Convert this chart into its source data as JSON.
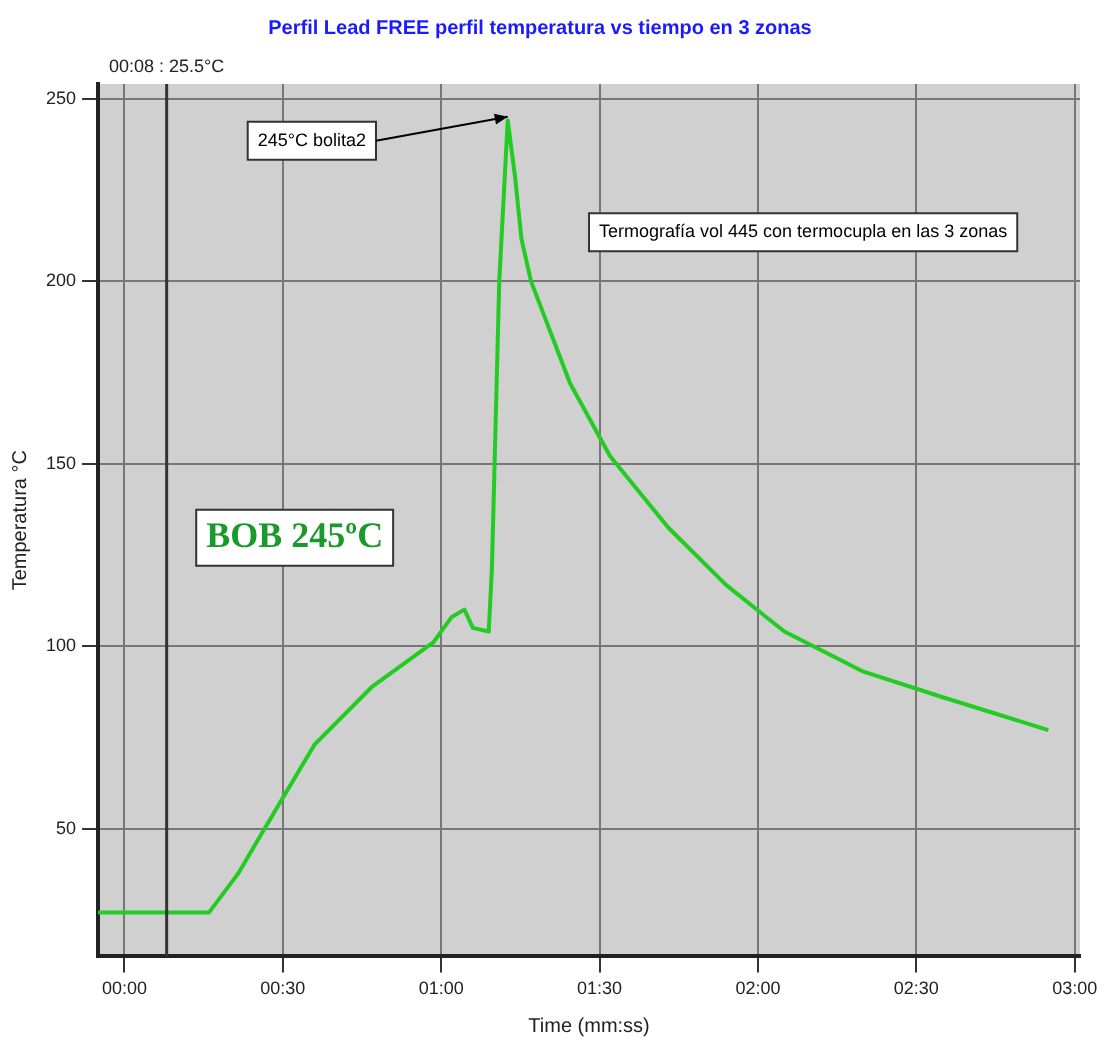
{
  "chart_data": {
    "type": "line",
    "title": "Perfil Lead FREE perfil temperatura vs tiempo en 3 zonas",
    "xlabel": "Time (mm:ss)",
    "ylabel": "Temperatura °C",
    "x": [
      -5,
      0,
      5,
      10,
      16,
      21.5,
      29,
      36,
      47,
      58.5,
      62,
      64.4,
      66,
      69,
      69.6,
      71,
      72.6,
      74,
      75.2,
      77,
      84.4,
      92,
      103,
      114,
      125,
      140,
      155,
      175
    ],
    "series": [
      {
        "color": "#22cc22",
        "values": [
          27,
          27,
          27,
          27,
          27,
          37.6,
          56,
          73,
          89,
          101,
          108,
          110,
          105,
          104,
          121,
          200,
          244,
          228.5,
          211.6,
          200,
          172,
          152,
          132.5,
          116.7,
          104,
          93,
          86,
          77
        ]
      }
    ],
    "xlim": [
      -5,
      181
    ],
    "xticks": [
      {
        "value": 0,
        "label": "00:00"
      },
      {
        "value": 30,
        "label": "00:30"
      },
      {
        "value": 60,
        "label": "01:00"
      },
      {
        "value": 90,
        "label": "01:30"
      },
      {
        "value": 120,
        "label": "02:00"
      },
      {
        "value": 150,
        "label": "02:30"
      },
      {
        "value": 180,
        "label": "03:00"
      }
    ],
    "ylim": [
      15,
      254
    ],
    "yticks": [
      50,
      100,
      150,
      200,
      250
    ],
    "grid": true,
    "marker": "none",
    "line_style": "solid",
    "ref_lines": [
      {
        "axis": "x",
        "value": 8,
        "label": "00:08 : 25.5°C",
        "color": "#333333"
      }
    ],
    "annotations": [
      {
        "text": "245°C bolita2",
        "x": 72.6,
        "y": 245
      },
      "Termografía vol 445 con termocupla en las 3 zonas",
      "BOB 245ºC"
    ]
  }
}
